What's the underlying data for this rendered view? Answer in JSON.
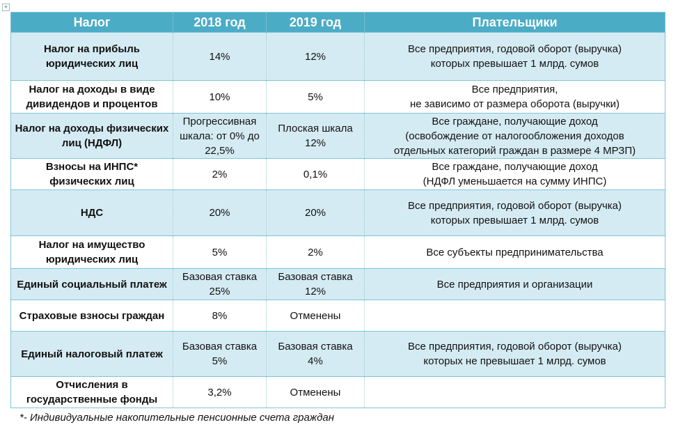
{
  "headers": [
    "Налог",
    "2018 год",
    "2019 год",
    "Плательщики"
  ],
  "rows": [
    {
      "name": "Налог на прибыль юридических лиц",
      "y2018": "14%",
      "y2019": "12%",
      "payers": [
        "Все предприятия, годовой оборот (выручка)",
        "которых превышает 1 млрд. сумов"
      ]
    },
    {
      "name": "Налог на доходы в виде дивидендов и процентов",
      "y2018": "10%",
      "y2019": "5%",
      "payers": [
        "Все предприятия,",
        "не зависимо от размера оборота (выручки)"
      ]
    },
    {
      "name": "Налог на доходы физических лиц (НДФЛ)",
      "y2018": "Прогрессивная шкала: от 0% до 22,5%",
      "y2019": "Плоская шкала 12%",
      "payers": [
        "Все граждане, получающие доход",
        "(освобождение от налогообложения доходов",
        "отдельных категорий граждан в размере 4 МРЗП)"
      ]
    },
    {
      "name": "Взносы на ИНПС* физических лиц",
      "y2018": "2%",
      "y2019": "0,1%",
      "payers": [
        "Все граждане, получающие доход",
        "(НДФЛ уменьшается на сумму ИНПС)"
      ]
    },
    {
      "name": "НДС",
      "y2018": "20%",
      "y2019": "20%",
      "payers": [
        "Все предприятия, годовой оборот (выручка)",
        "которых превышает 1 млрд. сумов"
      ]
    },
    {
      "name": "Налог на имущество юридических лиц",
      "y2018": "5%",
      "y2019": "2%",
      "payers": [
        "Все субъекты предпринимательства"
      ]
    },
    {
      "name": "Единый социальный платеж",
      "y2018": "Базовая ставка 25%",
      "y2019": "Базовая ставка 12%",
      "payers": [
        "Все предприятия и организации"
      ]
    },
    {
      "name": "Страховые взносы граждан",
      "y2018": "8%",
      "y2019": "Отменены",
      "payers": []
    },
    {
      "name": "Единый налоговый платеж",
      "y2018": "Базовая ставка 5%",
      "y2019": "Базовая ставка 4%",
      "payers": [
        "Все предприятия, годовой оборот (выручка)",
        "которых не превышает 1 млрд. сумов"
      ]
    },
    {
      "name": "Отчисления в государственные фонды",
      "y2018": "3,2%",
      "y2019": "Отменены",
      "payers": []
    }
  ],
  "footnote": "*- Индивидуальные накопительные пенсионные счета граждан"
}
